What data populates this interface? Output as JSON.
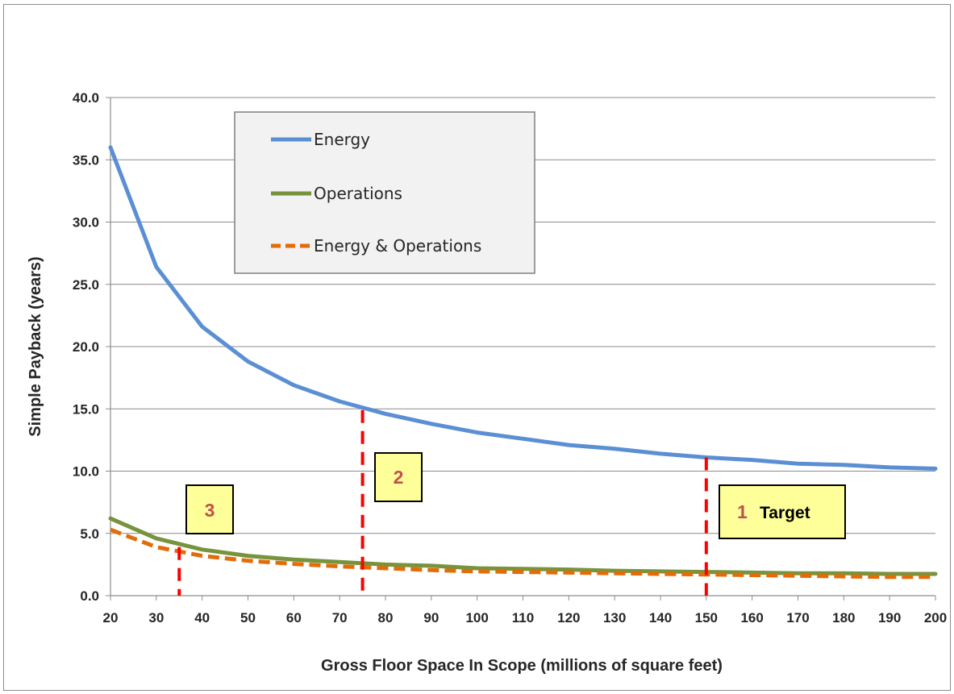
{
  "chart_data": {
    "type": "line",
    "title": "",
    "xlabel": "Gross Floor Space In Scope (millions of square feet)",
    "ylabel": "Simple Payback (years)",
    "xlim": [
      20,
      200
    ],
    "ylim": [
      0,
      40
    ],
    "x_ticks": [
      "20",
      "30",
      "40",
      "50",
      "60",
      "70",
      "80",
      "90",
      "100",
      "110",
      "120",
      "130",
      "140",
      "150",
      "160",
      "170",
      "180",
      "190",
      "200"
    ],
    "y_ticks": [
      "0.0",
      "5.0",
      "10.0",
      "15.0",
      "20.0",
      "25.0",
      "30.0",
      "35.0",
      "40.0"
    ],
    "grid": "horizontal",
    "legend_position": "top-left",
    "x": [
      20,
      30,
      40,
      50,
      60,
      70,
      80,
      90,
      100,
      110,
      120,
      130,
      140,
      150,
      160,
      170,
      180,
      190,
      200
    ],
    "series": [
      {
        "name": "Energy",
        "color": "#5b8fd4",
        "style": "solid",
        "values": [
          36.0,
          26.4,
          21.6,
          18.8,
          16.9,
          15.6,
          14.6,
          13.8,
          13.1,
          12.6,
          12.1,
          11.8,
          11.4,
          11.1,
          10.9,
          10.6,
          10.5,
          10.3,
          10.2
        ]
      },
      {
        "name": "Operations",
        "color": "#77933c",
        "style": "solid",
        "values": [
          6.2,
          4.6,
          3.7,
          3.2,
          2.9,
          2.7,
          2.5,
          2.4,
          2.2,
          2.15,
          2.1,
          2.0,
          1.95,
          1.9,
          1.85,
          1.8,
          1.8,
          1.75,
          1.75
        ]
      },
      {
        "name": "Energy & Operations",
        "color": "#e36c09",
        "style": "dashed",
        "values": [
          5.3,
          3.9,
          3.2,
          2.8,
          2.55,
          2.35,
          2.2,
          2.05,
          1.95,
          1.9,
          1.85,
          1.8,
          1.75,
          1.7,
          1.65,
          1.6,
          1.55,
          1.5,
          1.5
        ]
      }
    ],
    "markers": [
      {
        "number": "1",
        "label": "Target",
        "x": 150,
        "y_top": 11.1,
        "color": "#ff0000"
      },
      {
        "number": "2",
        "label": "",
        "x": 75,
        "y_top": 14.9,
        "color": "#ff0000"
      },
      {
        "number": "3",
        "label": "",
        "x": 35,
        "y_top": 3.9,
        "color": "#ff0000"
      }
    ]
  }
}
